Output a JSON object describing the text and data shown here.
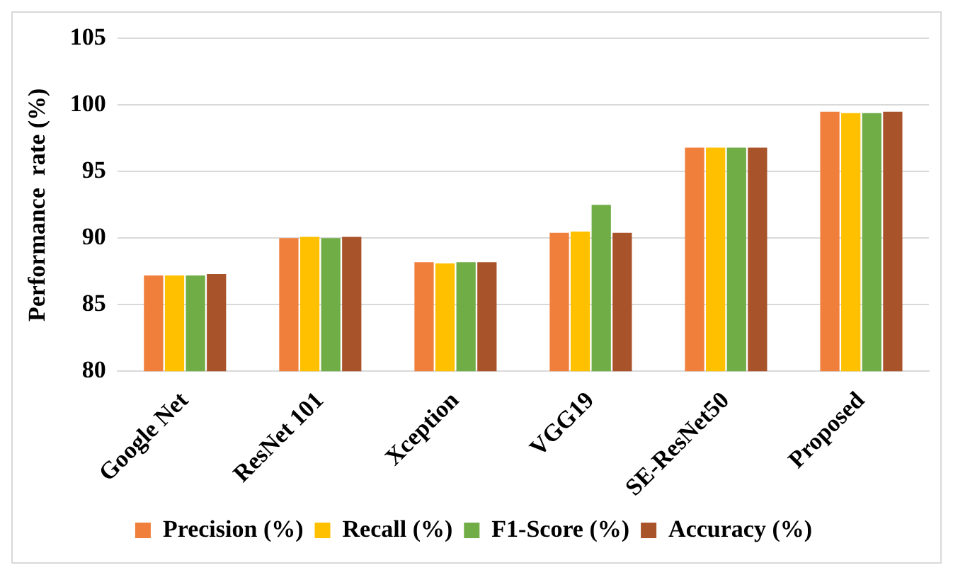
{
  "chart_data": {
    "type": "bar",
    "ylabel": "Performance  rate (%)",
    "categories": [
      "Google Net",
      "ResNet 101",
      "Xception",
      "VGG19",
      "SE-ResNet50",
      "Proposed"
    ],
    "series": [
      {
        "name": "Precision (%)",
        "color": "#f07f3c",
        "values": [
          87.2,
          90.0,
          88.2,
          90.4,
          96.8,
          99.5
        ]
      },
      {
        "name": "Recall (%)",
        "color": "#ffc000",
        "values": [
          87.2,
          90.1,
          88.1,
          90.5,
          96.8,
          99.4
        ]
      },
      {
        "name": "F1-Score (%)",
        "color": "#70ad47",
        "values": [
          87.2,
          90.0,
          88.2,
          92.5,
          96.8,
          99.4
        ]
      },
      {
        "name": "Accuracy (%)",
        "color": "#a9532a",
        "values": [
          87.3,
          90.1,
          88.2,
          90.4,
          96.8,
          99.5
        ]
      }
    ],
    "ylim": [
      80,
      105
    ],
    "yticks": [
      80,
      85,
      90,
      95,
      100,
      105
    ],
    "grid": "y",
    "legend": "bottom"
  }
}
